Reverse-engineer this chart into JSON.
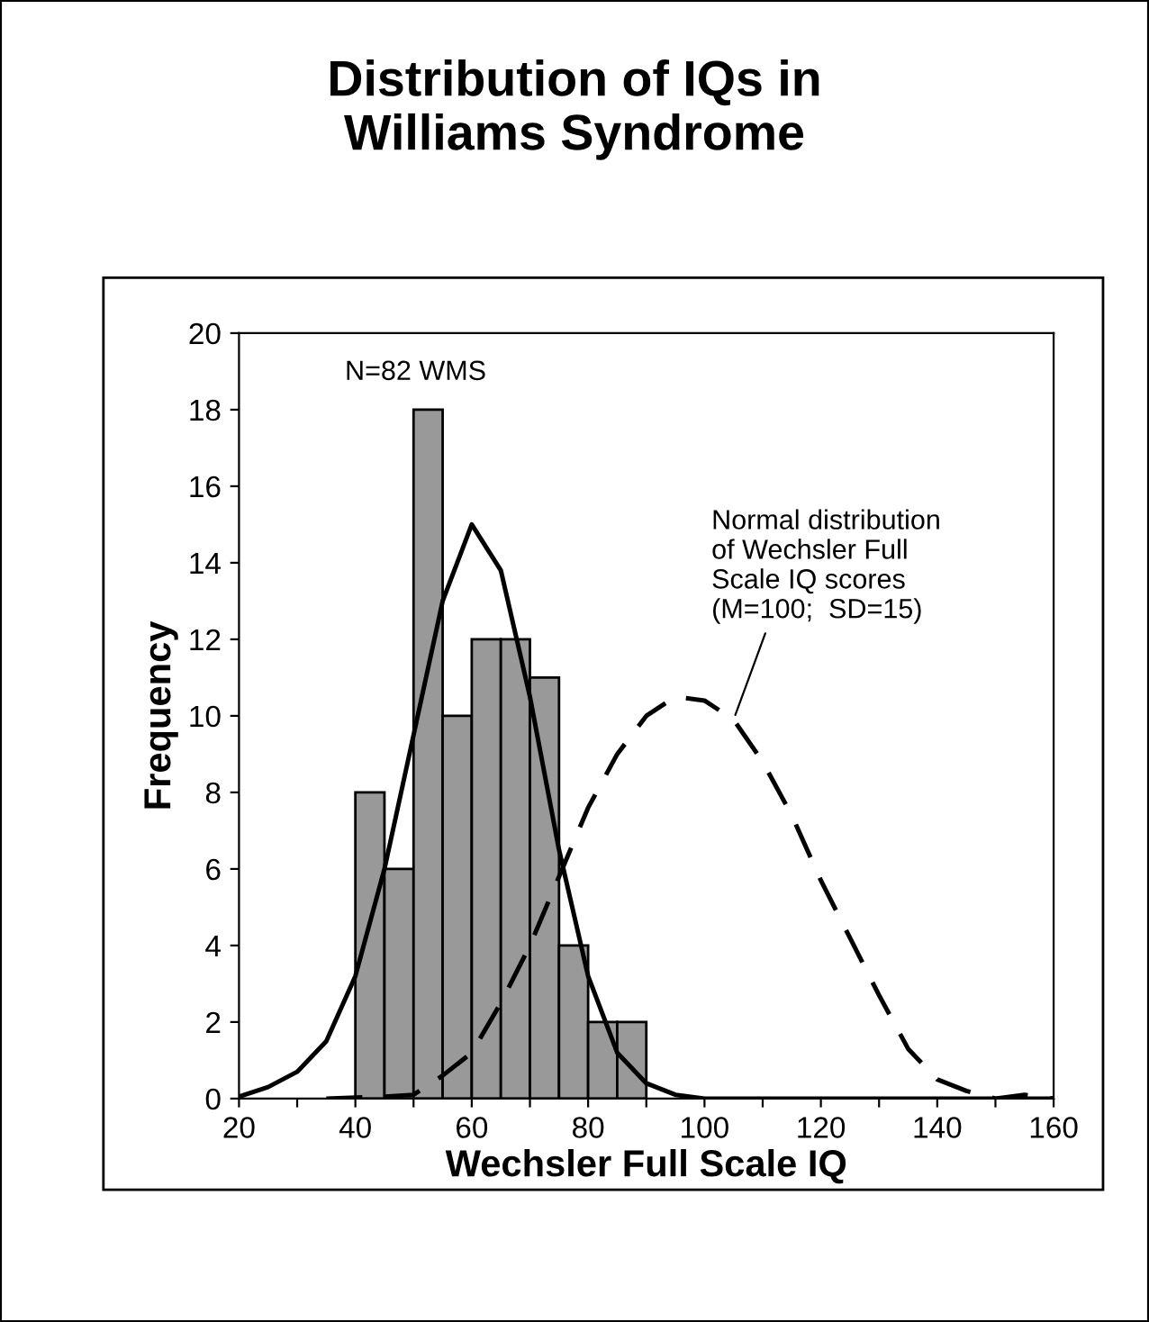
{
  "chart_data": {
    "type": "histogram",
    "title": "Distribution of IQs in\nWilliams Syndrome",
    "xlabel": "Wechsler Full Scale IQ",
    "ylabel": "Frequency",
    "annotations": [
      "N=82 WMS",
      {
        "text": "Normal distribution\nof Wechsler Full\nScale IQ scores\n(M=100;  SD=15)",
        "x": 105,
        "y": 9.9
      }
    ],
    "series": [
      {
        "type": "histogram",
        "color": "#999999",
        "bins": [
          40,
          45,
          50,
          55,
          60,
          65,
          70,
          75,
          80,
          85,
          90
        ],
        "values": [
          8,
          6,
          18,
          10,
          12,
          12,
          11,
          4,
          2,
          2
        ]
      },
      {
        "type": "line",
        "color": "#000000",
        "line_style": "solid",
        "x": [
          20,
          25,
          30,
          35,
          40,
          45,
          50,
          55,
          60,
          65,
          70,
          75,
          80,
          85,
          90,
          95,
          100,
          160
        ],
        "values": [
          0.05,
          0.3,
          0.7,
          1.5,
          3.2,
          6,
          9.5,
          13,
          15,
          13.8,
          10.5,
          6.5,
          3.2,
          1.2,
          0.4,
          0.1,
          0,
          0
        ]
      },
      {
        "type": "line",
        "color": "#000000",
        "line_style": "dashed",
        "x": [
          35,
          45,
          50,
          55,
          60,
          65,
          70,
          75,
          80,
          85,
          90,
          95,
          100,
          105,
          110,
          115,
          120,
          125,
          130,
          135,
          140,
          145,
          150,
          155,
          160
        ],
        "values": [
          0,
          0.05,
          0.1,
          0.6,
          1.2,
          2.5,
          4,
          5.8,
          7.6,
          9,
          10,
          10.5,
          10.4,
          9.9,
          8.8,
          7.4,
          5.7,
          4.2,
          2.7,
          1.3,
          0.5,
          0.2,
          0,
          0.1,
          0
        ]
      }
    ],
    "xlim": [
      20,
      160
    ],
    "xticks": [
      20,
      {
        "value": 30,
        "label": null
      },
      40,
      {
        "value": 50,
        "label": null
      },
      60,
      {
        "value": 70,
        "label": null
      },
      80,
      {
        "value": 90,
        "label": null
      },
      100,
      {
        "value": 110,
        "label": null
      },
      120,
      {
        "value": 130,
        "label": null
      },
      140,
      {
        "value": 150,
        "label": null
      },
      160
    ],
    "ylim": [
      0,
      20
    ],
    "yticks": [
      0,
      2,
      4,
      6,
      8,
      10,
      12,
      14,
      16,
      18,
      20
    ],
    "grid": false,
    "legend": false
  }
}
